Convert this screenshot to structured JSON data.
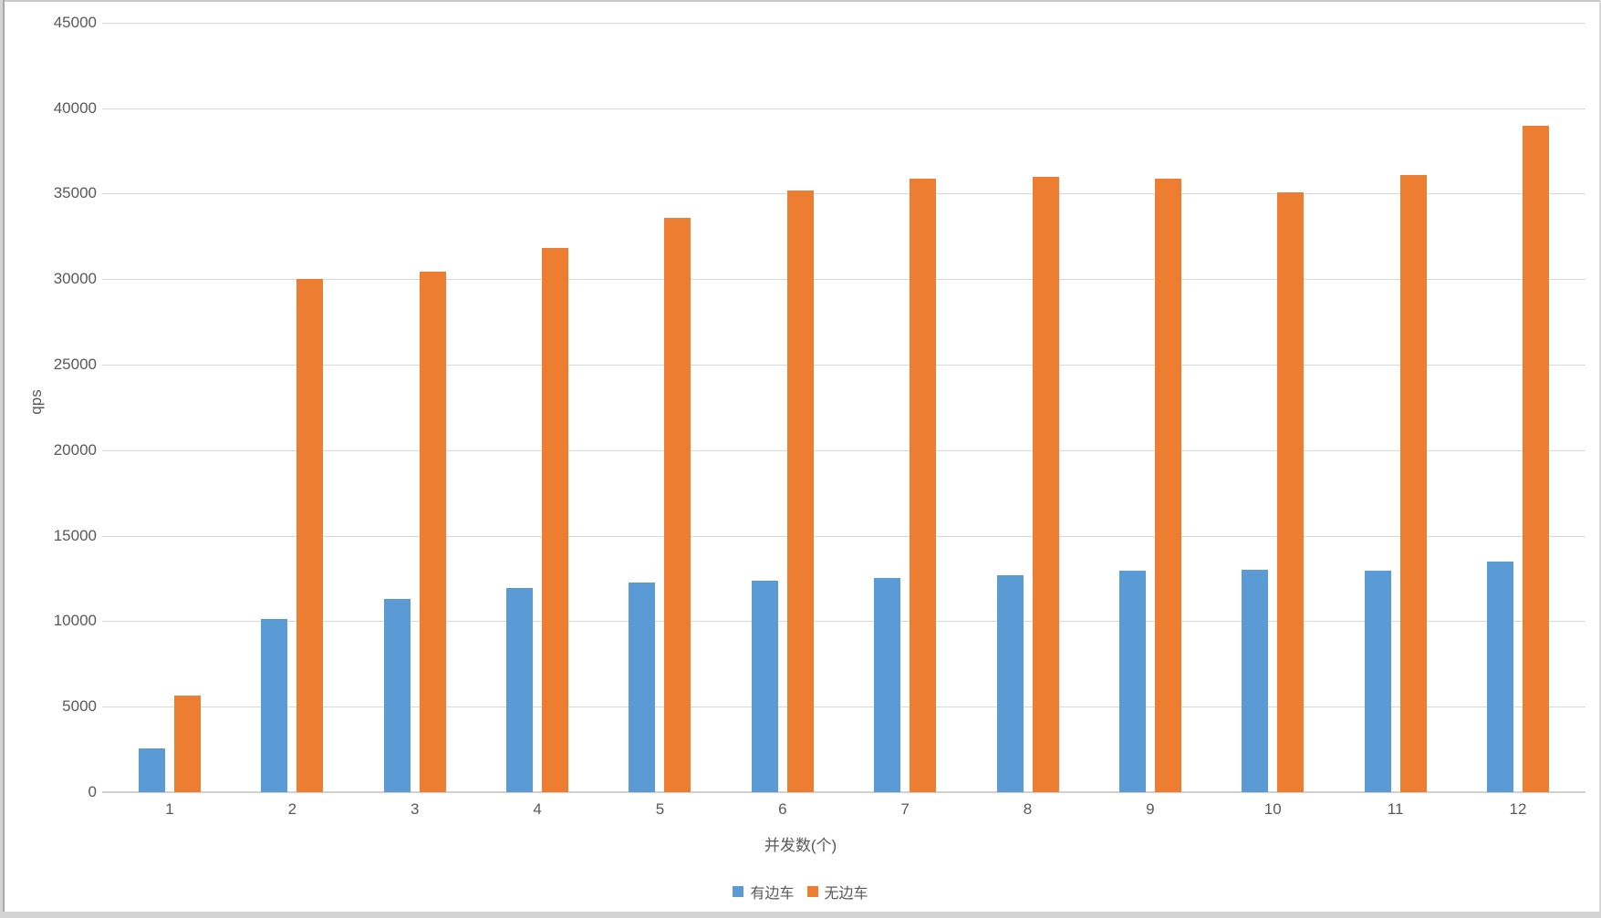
{
  "chart_data": {
    "type": "bar",
    "title": "",
    "categories": [
      "1",
      "2",
      "3",
      "4",
      "5",
      "6",
      "7",
      "8",
      "9",
      "10",
      "11",
      "12"
    ],
    "series": [
      {
        "name": "有边车",
        "color": "#5B9BD5",
        "values": [
          2550,
          10150,
          11300,
          11950,
          12250,
          12350,
          12550,
          12700,
          12950,
          13000,
          12950,
          13500
        ]
      },
      {
        "name": "无边车",
        "color": "#ED7D31",
        "values": [
          5650,
          30000,
          30450,
          31800,
          33600,
          35200,
          35850,
          36000,
          35850,
          35050,
          36100,
          38950
        ]
      }
    ],
    "xlabel": "并发数(个)",
    "ylabel": "qps",
    "ylim": [
      0,
      45000
    ],
    "yticks": [
      0,
      5000,
      10000,
      15000,
      20000,
      25000,
      30000,
      35000,
      40000,
      45000
    ],
    "grid": true,
    "legend_position": "bottom",
    "gridline_color": "#D9D9D9",
    "text_color": "#595959"
  }
}
